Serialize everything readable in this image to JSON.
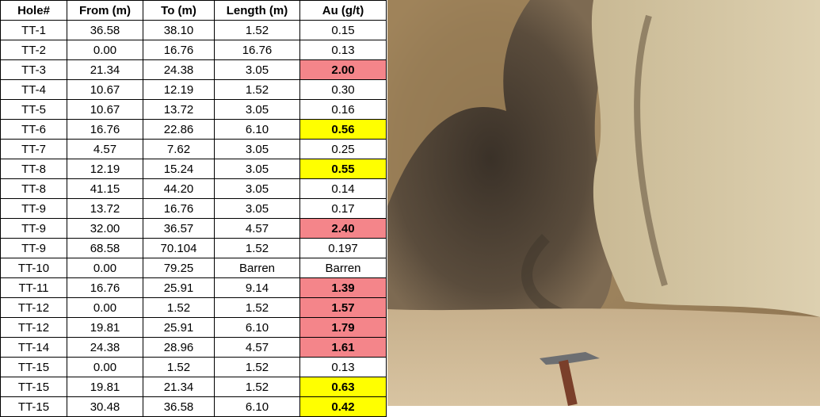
{
  "table": {
    "header": [
      "Hole#",
      "From (m)",
      "To (m)",
      "Length (m)",
      "Au (g/t)"
    ],
    "rows": [
      [
        "TT-1",
        "36.58",
        "38.10",
        "1.52",
        "0.15"
      ],
      [
        "TT-2",
        "0.00",
        "16.76",
        "16.76",
        "0.13"
      ],
      [
        "TT-3",
        "21.34",
        "24.38",
        "3.05",
        "2.00"
      ],
      [
        "TT-4",
        "10.67",
        "12.19",
        "1.52",
        "0.30"
      ],
      [
        "TT-5",
        "10.67",
        "13.72",
        "3.05",
        "0.16"
      ],
      [
        "TT-6",
        "16.76",
        "22.86",
        "6.10",
        "0.56"
      ],
      [
        "TT-7",
        "4.57",
        "7.62",
        "3.05",
        "0.25"
      ],
      [
        "TT-8",
        "12.19",
        "15.24",
        "3.05",
        "0.55"
      ],
      [
        "TT-8",
        "41.15",
        "44.20",
        "3.05",
        "0.14"
      ],
      [
        "TT-9",
        "13.72",
        "16.76",
        "3.05",
        "0.17"
      ],
      [
        "TT-9",
        "32.00",
        "36.57",
        "4.57",
        "2.40"
      ],
      [
        "TT-9",
        "68.58",
        "70.104",
        "1.52",
        "0.197"
      ],
      [
        "TT-10",
        "0.00",
        "79.25",
        "Barren",
        "Barren"
      ],
      [
        "TT-11",
        "16.76",
        "25.91",
        "9.14",
        "1.39"
      ],
      [
        "TT-12",
        "0.00",
        "1.52",
        "1.52",
        "1.57"
      ],
      [
        "TT-12",
        "19.81",
        "25.91",
        "6.10",
        "1.79"
      ],
      [
        "TT-14",
        "24.38",
        "28.96",
        "4.57",
        "1.61"
      ],
      [
        "TT-15",
        "0.00",
        "1.52",
        "1.52",
        "0.13"
      ],
      [
        "TT-15",
        "19.81",
        "21.34",
        "1.52",
        "0.63"
      ],
      [
        "TT-15",
        "30.48",
        "36.58",
        "6.10",
        "0.42"
      ]
    ],
    "au_colors": [
      null,
      null,
      "#f4858a",
      null,
      null,
      "#ffff00",
      null,
      "#ffff00",
      null,
      null,
      "#f4858a",
      null,
      null,
      "#f4858a",
      "#f4858a",
      "#f4858a",
      "#f4858a",
      null,
      "#ffff00",
      "#ffff00"
    ]
  }
}
